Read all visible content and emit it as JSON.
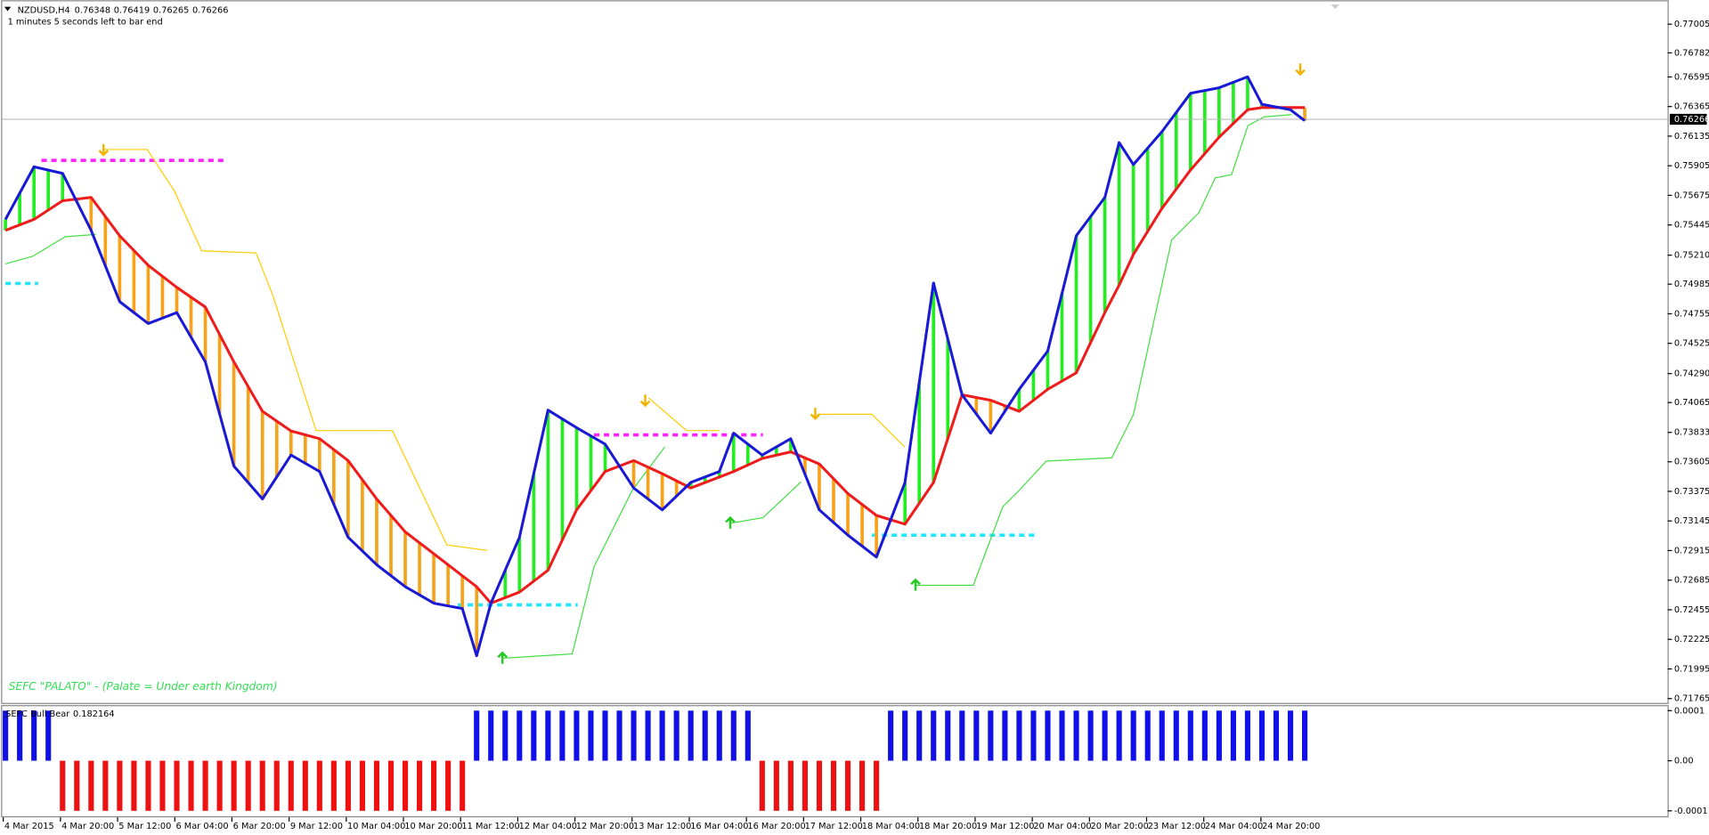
{
  "chart_data": [
    {
      "type": "line",
      "title": "NZDUSD,H4",
      "ohlc": [
        0.76348,
        0.76419,
        0.76265,
        0.76266
      ],
      "subtitle": "1 minutes 5 seconds left to bar end",
      "annotation": "SEFC \"PALATO\" - (Palate = Under earth Kingdom)",
      "current_price": 0.76266,
      "x": [
        0,
        2,
        4,
        6,
        8,
        10,
        12,
        14,
        16,
        18,
        20,
        22,
        24,
        26,
        28,
        30,
        32,
        33,
        34,
        36,
        38,
        40,
        42,
        44,
        46,
        48,
        50,
        51,
        53,
        55,
        57,
        59,
        61,
        63,
        65,
        67,
        69,
        71,
        73,
        75,
        77,
        78,
        79,
        81,
        83,
        85,
        87,
        88,
        90,
        91
      ],
      "series": [
        {
          "color": "#1a1ad6",
          "values": [
            0.75488,
            0.75897,
            0.75846,
            0.75403,
            0.74849,
            0.74679,
            0.74764,
            0.74381,
            0.73571,
            0.73316,
            0.73657,
            0.73529,
            0.73018,
            0.72805,
            0.72634,
            0.72506,
            0.72464,
            0.72097,
            0.72506,
            0.73018,
            0.74006,
            0.7387,
            0.73742,
            0.73401,
            0.73231,
            0.73444,
            0.73529,
            0.73827,
            0.73657,
            0.73784,
            0.73231,
            0.73035,
            0.72864,
            0.73444,
            0.74994,
            0.74125,
            0.73827,
            0.74168,
            0.74466,
            0.75361,
            0.75659,
            0.76085,
            0.75914,
            0.7617,
            0.76468,
            0.76511,
            0.76596,
            0.76383,
            0.7634,
            0.76255
          ]
        },
        {
          "color": "#ee1c1c",
          "values": [
            0.75403,
            0.75488,
            0.75633,
            0.75659,
            0.75361,
            0.75131,
            0.7496,
            0.74807,
            0.74381,
            0.73997,
            0.73844,
            0.73784,
            0.73614,
            0.73316,
            0.7306,
            0.7289,
            0.72719,
            0.72634,
            0.72506,
            0.72592,
            0.72762,
            0.73231,
            0.73529,
            0.73614,
            0.73512,
            0.73401,
            0.73486,
            0.73529,
            0.73631,
            0.73682,
            0.73588,
            0.73358,
            0.73188,
            0.7312,
            0.73444,
            0.74125,
            0.74083,
            0.73997,
            0.74168,
            0.74296,
            0.74764,
            0.74977,
            0.75216,
            0.75574,
            0.75872,
            0.76127,
            0.7634,
            0.76357,
            0.76357,
            0.76357
          ]
        }
      ],
      "up_fill": "#22ee22",
      "down_fill": "#f7a21b",
      "ylim": [
        0.71731,
        0.77191
      ],
      "yticks": [
        0.77005,
        0.76782,
        0.76595,
        0.76365,
        0.76135,
        0.75905,
        0.75675,
        0.75445,
        {
          "value": 0.7521,
          "label": "0.75210"
        },
        0.74985,
        0.74755,
        0.74525,
        {
          "value": 0.7429,
          "label": "0.74290"
        },
        0.74065,
        0.73833,
        0.73605,
        0.73375,
        0.73145,
        0.72915,
        0.72685,
        0.72455,
        0.72225,
        0.71995,
        0.71765
      ],
      "time_labels": [
        "4 Mar 2015",
        "4 Mar 20:00",
        "5 Mar 12:00",
        "6 Mar 04:00",
        "6 Mar 20:00",
        "9 Mar 12:00",
        "10 Mar 04:00",
        "10 Mar 20:00",
        "11 Mar 12:00",
        "12 Mar 04:00",
        "12 Mar 20:00",
        "13 Mar 12:00",
        "16 Mar 04:00",
        "16 Mar 20:00",
        "17 Mar 12:00",
        "18 Mar 04:00",
        "18 Mar 20:00",
        "19 Mar 12:00",
        "20 Mar 04:00",
        "20 Mar 20:00",
        "23 Mar 12:00",
        "24 Mar 04:00",
        "24 Mar 20:00"
      ]
    },
    {
      "type": "bar",
      "title": "SEFC Bull Bear",
      "indicator_value": 0.182164,
      "values": [
        0.0001,
        0.0001,
        0.0001,
        0.0001,
        -0.0001,
        -0.0001,
        -0.0001,
        -0.0001,
        -0.0001,
        -0.0001,
        -0.0001,
        -0.0001,
        -0.0001,
        -0.0001,
        -0.0001,
        -0.0001,
        -0.0001,
        -0.0001,
        -0.0001,
        -0.0001,
        -0.0001,
        -0.0001,
        -0.0001,
        -0.0001,
        -0.0001,
        -0.0001,
        -0.0001,
        -0.0001,
        -0.0001,
        -0.0001,
        -0.0001,
        -0.0001,
        -0.0001,
        0.0001,
        0.0001,
        0.0001,
        0.0001,
        0.0001,
        0.0001,
        0.0001,
        0.0001,
        0.0001,
        0.0001,
        0.0001,
        0.0001,
        0.0001,
        0.0001,
        0.0001,
        0.0001,
        0.0001,
        0.0001,
        0.0001,
        0.0001,
        -0.0001,
        -0.0001,
        -0.0001,
        -0.0001,
        -0.0001,
        -0.0001,
        -0.0001,
        -0.0001,
        -0.0001,
        0.0001,
        0.0001,
        0.0001,
        0.0001,
        0.0001,
        0.0001,
        0.0001,
        0.0001,
        0.0001,
        0.0001,
        0.0001,
        0.0001,
        0.0001,
        0.0001,
        0.0001,
        0.0001,
        0.0001,
        0.0001,
        0.0001,
        0.0001,
        0.0001,
        0.0001,
        0.0001,
        0.0001,
        0.0001,
        0.0001,
        0.0001,
        0.0001,
        0.0001,
        0.0001
      ],
      "color": "#1010e6",
      "negative_color": "#ee1111",
      "ylim": [
        -0.000113,
        0.000111
      ],
      "yticks": [
        0.0001,
        {
          "value": 0,
          "label": "0.00"
        },
        -0.0001
      ]
    }
  ]
}
